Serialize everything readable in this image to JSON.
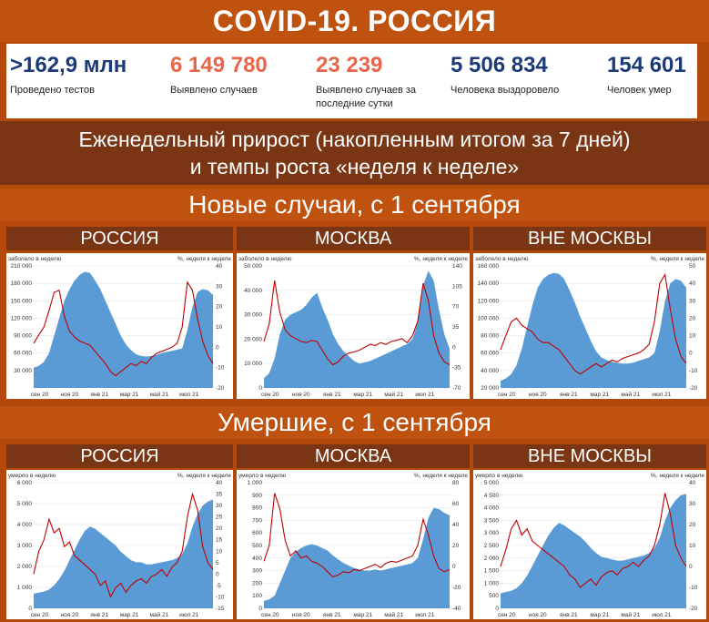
{
  "header": {
    "title": "COVID-19. РОССИЯ"
  },
  "stats": [
    {
      "value": ">162,9 млн",
      "label": "Проведено тестов",
      "color": "#1c3a7a"
    },
    {
      "value": "6 149 780",
      "label": "Выявлено случаев",
      "color": "#e8654a"
    },
    {
      "value": "23 239",
      "label": "Выявлено случаев за последние сутки",
      "color": "#e8654a"
    },
    {
      "value": "5 506 834",
      "label": "Человека выздоровело",
      "color": "#1c3a7a"
    },
    {
      "value": "154 601",
      "label": "Человек умер",
      "color": "#1c3a7a"
    }
  ],
  "subtitle": {
    "line1": "Еженедельный прирост (накопленным итогом за 7 дней)",
    "line2": "и темпы роста «неделя к неделе»"
  },
  "sections": {
    "cases": "Новые случаи, с 1 сентября",
    "deaths": "Умершие, с 1 сентября"
  },
  "panels": [
    "РОССИЯ",
    "МОСКВА",
    "ВНЕ МОСКВЫ"
  ],
  "colors": {
    "area": "#5b9bd5",
    "line": "#c00000"
  },
  "chart_data": [
    {
      "type": "area",
      "region": "РОССИЯ",
      "metric": "cases",
      "left_label": "заболело в неделю",
      "right_label": "%, неделя к неделе",
      "x_ticks": [
        "сен 20",
        "ноя 20",
        "янв 21",
        "мар 21",
        "май 21",
        "июл 21"
      ],
      "y_left": [
        0,
        210000
      ],
      "y_left_ticks": [
        30000,
        60000,
        90000,
        120000,
        150000,
        180000,
        210000
      ],
      "y_left_tick_labels": [
        "30 000",
        "60 000",
        "90 000",
        "120 000",
        "150 000",
        "180 000",
        "210 000"
      ],
      "y_right": [
        -20,
        40
      ],
      "y_right_ticks": [
        -20,
        -10,
        0,
        10,
        20,
        30,
        40
      ],
      "series": [
        {
          "values": [
            35000,
            38000,
            45000,
            60000,
            90000,
            120000,
            150000,
            170000,
            185000,
            195000,
            200000,
            198000,
            185000,
            170000,
            150000,
            130000,
            110000,
            90000,
            75000,
            65000,
            58000,
            55000,
            54000,
            55000,
            57000,
            60000,
            62000,
            64000,
            66000,
            68000,
            100000,
            140000,
            165000,
            170000,
            168000,
            160000
          ]
        },
        {
          "values": [
            2,
            6,
            10,
            18,
            27,
            28,
            15,
            8,
            5,
            3,
            2,
            1,
            -2,
            -5,
            -8,
            -12,
            -14,
            -12,
            -10,
            -8,
            -9,
            -7,
            -8,
            -5,
            -3,
            -2,
            -1,
            0,
            2,
            10,
            32,
            28,
            14,
            3,
            -4,
            -8
          ]
        }
      ]
    },
    {
      "type": "area",
      "region": "МОСКВА",
      "metric": "cases",
      "left_label": "заболело в неделю",
      "right_label": "%, неделя к неделе",
      "x_ticks": [
        "сен 20",
        "ноя 20",
        "янв 21",
        "мар 21",
        "май 21",
        "июл 21"
      ],
      "y_left": [
        0,
        50000
      ],
      "y_left_ticks": [
        0,
        10000,
        20000,
        30000,
        40000,
        50000
      ],
      "y_left_tick_labels": [
        "0",
        "10 000",
        "20 000",
        "30 000",
        "40 000",
        "50 000"
      ],
      "y_right": [
        -70,
        140
      ],
      "y_right_ticks": [
        -70,
        -35,
        0,
        35,
        70,
        105,
        140
      ],
      "series": [
        {
          "values": [
            4000,
            6000,
            12000,
            22000,
            28000,
            30000,
            31000,
            32000,
            34000,
            37000,
            39000,
            33000,
            28000,
            22000,
            18000,
            15000,
            13000,
            11000,
            10000,
            10500,
            11000,
            12000,
            13000,
            14000,
            15000,
            16000,
            17000,
            18000,
            20000,
            27000,
            42000,
            48000,
            44000,
            32000,
            22000,
            16000
          ]
        },
        {
          "values": [
            10,
            40,
            115,
            60,
            30,
            20,
            15,
            10,
            8,
            12,
            10,
            -5,
            -20,
            -30,
            -25,
            -15,
            -10,
            -8,
            -5,
            0,
            5,
            3,
            8,
            5,
            10,
            12,
            15,
            8,
            20,
            45,
            110,
            80,
            20,
            -10,
            -25,
            -30
          ]
        }
      ]
    },
    {
      "type": "area",
      "region": "ВНЕ МОСКВЫ",
      "metric": "cases",
      "left_label": "заболело в неделю",
      "right_label": "%, неделя к неделе",
      "x_ticks": [
        "сен 20",
        "ноя 20",
        "янв 21",
        "мар 21",
        "май 21",
        "июл 21"
      ],
      "y_left": [
        20000,
        160000
      ],
      "y_left_ticks": [
        20000,
        40000,
        60000,
        80000,
        100000,
        120000,
        140000,
        160000
      ],
      "y_left_tick_labels": [
        "20 000",
        "40 000",
        "60 000",
        "80 000",
        "100 000",
        "120 000",
        "140 000",
        "160 000"
      ],
      "y_right": [
        -20,
        50
      ],
      "y_right_ticks": [
        -20,
        -10,
        0,
        10,
        20,
        30,
        40,
        50
      ],
      "series": [
        {
          "values": [
            28000,
            31000,
            36000,
            46000,
            65000,
            90000,
            115000,
            135000,
            145000,
            150000,
            152000,
            151000,
            145000,
            132000,
            118000,
            102000,
            88000,
            74000,
            62000,
            55000,
            52000,
            50000,
            49000,
            48000,
            48000,
            49000,
            51000,
            53000,
            55000,
            60000,
            85000,
            120000,
            140000,
            145000,
            143000,
            135000
          ]
        },
        {
          "values": [
            2,
            10,
            18,
            20,
            16,
            14,
            12,
            8,
            6,
            6,
            4,
            2,
            -2,
            -6,
            -10,
            -12,
            -10,
            -8,
            -6,
            -8,
            -6,
            -4,
            -5,
            -3,
            -2,
            -1,
            0,
            2,
            5,
            18,
            40,
            45,
            25,
            8,
            -2,
            -6
          ]
        }
      ]
    },
    {
      "type": "area",
      "region": "РОССИЯ",
      "metric": "deaths",
      "left_label": "умерло в неделю",
      "right_label": "%, неделя к неделе",
      "x_ticks": [
        "сен 20",
        "ноя 20",
        "янв 21",
        "мар 21",
        "май 21",
        "июл 21"
      ],
      "y_left": [
        0,
        6000
      ],
      "y_left_ticks": [
        0,
        1000,
        2000,
        3000,
        4000,
        5000,
        6000
      ],
      "y_left_tick_labels": [
        "0",
        "1 000",
        "2 000",
        "3 000",
        "4 000",
        "5 000",
        "6 000"
      ],
      "y_right": [
        -15,
        40
      ],
      "y_right_ticks": [
        -15,
        -10,
        -5,
        0,
        5,
        10,
        15,
        20,
        25,
        30,
        35,
        40
      ],
      "series": [
        {
          "values": [
            700,
            750,
            800,
            900,
            1100,
            1400,
            1800,
            2300,
            2800,
            3300,
            3700,
            3900,
            3800,
            3600,
            3400,
            3200,
            3000,
            2700,
            2500,
            2300,
            2200,
            2200,
            2100,
            2100,
            2150,
            2200,
            2250,
            2300,
            2400,
            2600,
            3100,
            3900,
            4500,
            4900,
            5100,
            5200
          ]
        },
        {
          "values": [
            0,
            10,
            15,
            24,
            18,
            20,
            12,
            14,
            8,
            6,
            4,
            2,
            0,
            -5,
            -3,
            -10,
            -6,
            -4,
            -8,
            -5,
            -3,
            -2,
            -4,
            -1,
            0,
            2,
            -1,
            3,
            5,
            10,
            25,
            35,
            28,
            12,
            5,
            2
          ]
        }
      ]
    },
    {
      "type": "area",
      "region": "МОСКВА",
      "metric": "deaths",
      "left_label": "умерло в неделю",
      "right_label": "%, неделя к неделе",
      "x_ticks": [
        "сен 20",
        "ноя 20",
        "янв 21",
        "мар 21",
        "май 21",
        "июл 21"
      ],
      "y_left": [
        0,
        1000
      ],
      "y_left_ticks": [
        0,
        100,
        200,
        300,
        400,
        500,
        600,
        700,
        800,
        900,
        1000
      ],
      "y_left_tick_labels": [
        "0",
        "100",
        "200",
        "300",
        "400",
        "500",
        "600",
        "700",
        "800",
        "900",
        "1 000"
      ],
      "y_right": [
        -40,
        80
      ],
      "y_right_ticks": [
        -40,
        -20,
        0,
        20,
        40,
        60,
        80
      ],
      "series": [
        {
          "values": [
            60,
            70,
            100,
            200,
            300,
            400,
            450,
            480,
            500,
            510,
            500,
            480,
            460,
            420,
            390,
            360,
            340,
            320,
            310,
            300,
            300,
            310,
            300,
            310,
            320,
            330,
            340,
            350,
            360,
            400,
            550,
            720,
            800,
            790,
            760,
            740
          ]
        },
        {
          "values": [
            5,
            20,
            70,
            55,
            25,
            10,
            15,
            8,
            10,
            5,
            3,
            0,
            -5,
            -10,
            -8,
            -5,
            -6,
            -3,
            -4,
            -2,
            0,
            2,
            -1,
            3,
            5,
            4,
            6,
            8,
            10,
            20,
            45,
            30,
            10,
            -2,
            -5,
            -3
          ]
        }
      ]
    },
    {
      "type": "area",
      "region": "ВНЕ МОСКВЫ",
      "metric": "deaths",
      "left_label": "умерло в неделю",
      "right_label": "%, неделя к неделе",
      "x_ticks": [
        "сен 20",
        "ноя 20",
        "янв 21",
        "мар 21",
        "май 21",
        "июл 21"
      ],
      "y_left": [
        0,
        5000
      ],
      "y_left_ticks": [
        0,
        500,
        1000,
        1500,
        2000,
        2500,
        3000,
        3500,
        4000,
        4500,
        5000
      ],
      "y_left_tick_labels": [
        "0",
        "500",
        "1 000",
        "1 500",
        "2 000",
        "2 500",
        "3 000",
        "3 500",
        "4 000",
        "4 500",
        "5 000"
      ],
      "y_right": [
        -20,
        40
      ],
      "y_right_ticks": [
        -20,
        -10,
        0,
        10,
        20,
        30,
        40
      ],
      "series": [
        {
          "values": [
            600,
            650,
            700,
            800,
            1000,
            1300,
            1700,
            2100,
            2500,
            2900,
            3200,
            3400,
            3300,
            3150,
            3000,
            2850,
            2650,
            2400,
            2200,
            2050,
            2000,
            1950,
            1900,
            1900,
            1950,
            2000,
            2050,
            2100,
            2200,
            2400,
            2800,
            3500,
            4000,
            4300,
            4500,
            4550
          ]
        },
        {
          "values": [
            0,
            8,
            18,
            22,
            15,
            18,
            12,
            10,
            8,
            6,
            4,
            2,
            0,
            -4,
            -6,
            -10,
            -8,
            -6,
            -9,
            -5,
            -3,
            -2,
            -4,
            -1,
            0,
            2,
            0,
            3,
            5,
            10,
            20,
            35,
            25,
            10,
            4,
            0
          ]
        }
      ]
    }
  ]
}
